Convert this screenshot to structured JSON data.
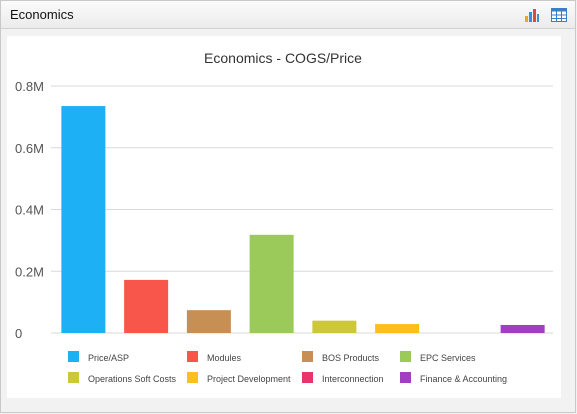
{
  "panel": {
    "title": "Economics",
    "icons": [
      "bar-chart-icon",
      "table-grid-icon"
    ]
  },
  "colors": {
    "grid": "#d9d9d9",
    "axis_text": "#555555",
    "title_text": "#333333"
  },
  "chart_data": {
    "type": "bar",
    "title": "Economics - COGS/Price",
    "xlabel": "",
    "ylabel": "",
    "ylim": [
      0,
      800000
    ],
    "yticks": [
      0,
      200000,
      400000,
      600000,
      800000
    ],
    "ytick_labels": [
      "0",
      "0.2M",
      "0.4M",
      "0.6M",
      "0.8M"
    ],
    "grid": true,
    "legend_position": "bottom",
    "categories": [
      "Price/ASP",
      "Modules",
      "BOS Products",
      "EPC Services",
      "Operations Soft Costs",
      "Project Development",
      "Interconnection",
      "Finance & Accounting"
    ],
    "values": [
      735000,
      172000,
      74000,
      318000,
      40000,
      29000,
      0,
      26000
    ],
    "colors": [
      "#1eb0f5",
      "#f8564a",
      "#c88f54",
      "#9cca5a",
      "#ccc83a",
      "#fdbf1f",
      "#e8366d",
      "#a23ec3"
    ]
  }
}
